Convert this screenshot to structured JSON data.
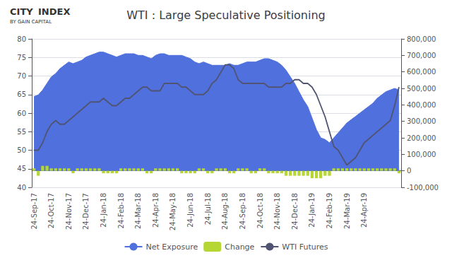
{
  "chart_data": {
    "type": "line",
    "title": "WTI : Large Speculative Positioning",
    "annotations": [
      "CITY",
      "INDEX",
      "BY GAIN CAPITAL"
    ],
    "categories": [
      "24-Sep-17",
      null,
      null,
      null,
      "24-Oct-17",
      null,
      null,
      null,
      "24-Nov-17",
      null,
      null,
      null,
      "24-Dec-17",
      null,
      null,
      null,
      "24-Jan-18",
      null,
      null,
      null,
      "24-Feb-18",
      null,
      null,
      null,
      "24-Mar-18",
      null,
      null,
      null,
      "24-Apr-18",
      null,
      null,
      null,
      "24-May-18",
      null,
      null,
      null,
      "24-Jun-18",
      null,
      null,
      null,
      "24-Jul-18",
      null,
      null,
      null,
      "24-Aug-18",
      null,
      null,
      null,
      "24-Sep-18",
      null,
      null,
      null,
      "24-Oct-18",
      null,
      null,
      null,
      "24-Nov-18",
      null,
      null,
      null,
      "24-Dec-18",
      null,
      null,
      null,
      "24-Jan-19",
      null,
      null,
      null,
      "24-Feb-19",
      null,
      null,
      null,
      "24-Mar-19",
      null,
      null,
      null,
      "24-Apr-19",
      null,
      null,
      null,
      null,
      null,
      null,
      null,
      null
    ],
    "series": [
      {
        "name": "Net Exposure",
        "type": "area",
        "axis": "y2",
        "values": [
          450000,
          460000,
          490000,
          530000,
          570000,
          590000,
          620000,
          640000,
          660000,
          650000,
          660000,
          670000,
          690000,
          700000,
          710000,
          720000,
          720000,
          710000,
          700000,
          690000,
          700000,
          710000,
          710000,
          710000,
          700000,
          700000,
          690000,
          680000,
          700000,
          710000,
          710000,
          700000,
          700000,
          700000,
          700000,
          690000,
          680000,
          660000,
          650000,
          660000,
          650000,
          640000,
          640000,
          640000,
          640000,
          650000,
          640000,
          640000,
          650000,
          660000,
          660000,
          660000,
          670000,
          680000,
          680000,
          670000,
          660000,
          640000,
          610000,
          570000,
          530000,
          480000,
          430000,
          390000,
          320000,
          250000,
          200000,
          190000,
          170000,
          200000,
          230000,
          260000,
          290000,
          310000,
          330000,
          350000,
          370000,
          390000,
          410000,
          440000,
          460000,
          480000,
          490000,
          500000,
          490000
        ]
      },
      {
        "name": "Change",
        "type": "bar",
        "axis": "y2",
        "values": [
          15000,
          -30000,
          30000,
          30000,
          15000,
          15000,
          15000,
          15000,
          15000,
          -15000,
          15000,
          15000,
          15000,
          15000,
          15000,
          15000,
          -15000,
          -15000,
          -15000,
          -15000,
          15000,
          15000,
          15000,
          15000,
          15000,
          15000,
          -15000,
          -15000,
          15000,
          15000,
          15000,
          15000,
          15000,
          15000,
          -15000,
          -15000,
          -15000,
          -15000,
          15000,
          15000,
          -15000,
          -15000,
          15000,
          15000,
          15000,
          -15000,
          -15000,
          15000,
          15000,
          15000,
          -15000,
          -15000,
          15000,
          15000,
          -15000,
          -15000,
          -15000,
          -15000,
          -30000,
          -30000,
          -30000,
          -30000,
          -30000,
          -30000,
          -45000,
          -45000,
          -45000,
          -30000,
          -30000,
          15000,
          15000,
          15000,
          15000,
          15000,
          15000,
          15000,
          15000,
          15000,
          15000,
          15000,
          15000,
          15000,
          15000,
          15000,
          -15000
        ]
      },
      {
        "name": "WTI Futures",
        "type": "line",
        "values": [
          50,
          50,
          52,
          55,
          57,
          58,
          57,
          57,
          58,
          59,
          60,
          61,
          62,
          63,
          63,
          63,
          64,
          63,
          62,
          62,
          63,
          64,
          64,
          65,
          66,
          67,
          67,
          66,
          66,
          66,
          68,
          68,
          68,
          68,
          67,
          67,
          66,
          65,
          65,
          65,
          66,
          68,
          69,
          71,
          73,
          73,
          72,
          69,
          68,
          68,
          68,
          68,
          68,
          68,
          67,
          67,
          67,
          67,
          68,
          68,
          69,
          69,
          68,
          68,
          67,
          65,
          62,
          59,
          55,
          51,
          50,
          48,
          46,
          47,
          48,
          50,
          52,
          53,
          54,
          55,
          56,
          57,
          58,
          62,
          67
        ]
      }
    ],
    "ylim": [
      40,
      80
    ],
    "yticks": [
      40,
      45,
      50,
      55,
      60,
      65,
      70,
      75,
      80
    ],
    "y2lim": [
      -100000,
      800000
    ],
    "y2ticks": [
      {
        "value": -100000,
        "label": "-100,000"
      },
      0,
      {
        "value": 100000,
        "label": "100,000"
      },
      {
        "value": 200000,
        "label": "200,000"
      },
      {
        "value": 300000,
        "label": "300,000"
      },
      {
        "value": 400000,
        "label": "400,000"
      },
      {
        "value": 500000,
        "label": "500,000"
      },
      {
        "value": 600000,
        "label": "600,000"
      },
      {
        "value": 700000,
        "label": "700,000"
      },
      {
        "value": 800000,
        "label": "800,000"
      }
    ],
    "grid": true,
    "legend": "bottom"
  }
}
